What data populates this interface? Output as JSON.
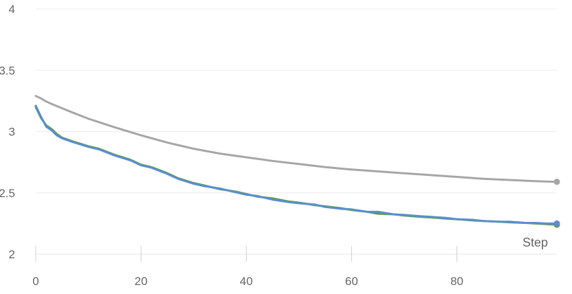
{
  "chart_data": {
    "type": "line",
    "title": "",
    "xlabel": "Step",
    "ylabel": "",
    "xlim": [
      0,
      99
    ],
    "ylim": [
      2,
      4
    ],
    "x_ticks": [
      0,
      20,
      40,
      60,
      80
    ],
    "y_ticks": [
      2,
      2.5,
      3,
      3.5,
      4
    ],
    "x_tick_labels": [
      "0",
      "20",
      "40",
      "60",
      "80"
    ],
    "y_tick_labels": [
      "2",
      "2.5",
      "3",
      "3.5",
      "4"
    ],
    "grid": true,
    "legend": "none",
    "series": [
      {
        "color": "#a6a6a6",
        "x": [
          0,
          1,
          2,
          3,
          5,
          7,
          10,
          15,
          20,
          25,
          30,
          35,
          40,
          45,
          50,
          55,
          60,
          65,
          70,
          75,
          80,
          85,
          90,
          95,
          99
        ],
        "values": [
          3.29,
          3.27,
          3.245,
          3.225,
          3.19,
          3.155,
          3.105,
          3.035,
          2.97,
          2.91,
          2.86,
          2.82,
          2.79,
          2.76,
          2.735,
          2.71,
          2.69,
          2.675,
          2.66,
          2.645,
          2.63,
          2.615,
          2.605,
          2.595,
          2.59
        ]
      },
      {
        "color": "#5b9e45",
        "x": [
          0,
          1,
          2,
          3,
          4,
          5,
          7,
          10,
          12,
          15,
          18,
          20,
          22,
          25,
          27,
          30,
          32,
          35,
          38,
          40,
          42,
          45,
          48,
          50,
          53,
          55,
          58,
          60,
          63,
          65,
          68,
          70,
          73,
          75,
          78,
          80,
          83,
          85,
          88,
          90,
          93,
          95,
          97,
          99
        ],
        "values": [
          3.2,
          3.11,
          3.05,
          3.02,
          2.98,
          2.95,
          2.92,
          2.88,
          2.86,
          2.81,
          2.77,
          2.73,
          2.71,
          2.66,
          2.62,
          2.58,
          2.56,
          2.53,
          2.51,
          2.49,
          2.47,
          2.455,
          2.43,
          2.42,
          2.4,
          2.39,
          2.375,
          2.36,
          2.345,
          2.33,
          2.325,
          2.315,
          2.305,
          2.3,
          2.29,
          2.285,
          2.275,
          2.27,
          2.265,
          2.26,
          2.255,
          2.25,
          2.245,
          2.24
        ]
      },
      {
        "color": "#5a8ed1",
        "x": [
          0,
          1,
          2,
          3,
          4,
          5,
          7,
          10,
          12,
          15,
          18,
          20,
          22,
          25,
          27,
          30,
          32,
          35,
          38,
          40,
          42,
          45,
          48,
          50,
          53,
          55,
          58,
          60,
          63,
          65,
          68,
          70,
          73,
          75,
          78,
          80,
          83,
          85,
          88,
          90,
          93,
          95,
          97,
          99
        ],
        "values": [
          3.21,
          3.12,
          3.04,
          3.01,
          2.97,
          2.945,
          2.915,
          2.875,
          2.855,
          2.805,
          2.765,
          2.725,
          2.705,
          2.655,
          2.615,
          2.575,
          2.555,
          2.535,
          2.505,
          2.485,
          2.475,
          2.445,
          2.425,
          2.415,
          2.405,
          2.385,
          2.37,
          2.365,
          2.345,
          2.345,
          2.325,
          2.32,
          2.31,
          2.305,
          2.295,
          2.285,
          2.28,
          2.27,
          2.265,
          2.265,
          2.255,
          2.255,
          2.25,
          2.25
        ]
      }
    ]
  }
}
